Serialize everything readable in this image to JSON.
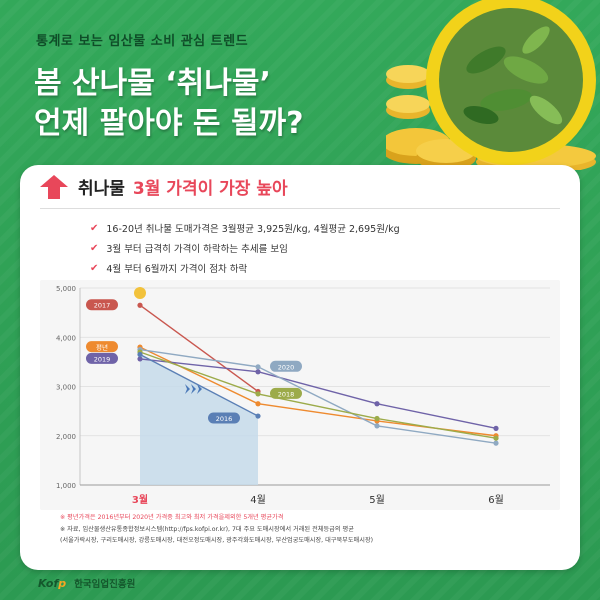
{
  "header": {
    "subtitle": "통계로 보는 임산물 소비 관심 트렌드",
    "title_line1": "봄 산나물 ‘취나물’",
    "title_line2": "언제 팔아야 돈 될까?"
  },
  "card": {
    "heading_main": "취나물",
    "heading_highlight": "3월 가격이 가장 높아",
    "bullets": [
      "16-20년 취나물 도매가격은 3월평균 3,925원/kg, 4월평균 2,695원/kg",
      "3월 부터 급격히 가격이 하락하는 추세를 보임",
      "4월 부터 6월까지 가격이 점차 하락"
    ]
  },
  "notes": {
    "line1": "※ 평년가격은 2016년부터 2020년 가격중 최고와 최저 가격을제외한 5개년 평균가격",
    "line2": "※ 자료, 임산물생산유통종합정보시스템(http://fps.kofpi.or.kr), 7대 주요 도매시장에서 거래된 전체등급의 평균",
    "line3": "(서울가락시장, 구리도매시장, 강릉도매시장, 대전오정도매시장, 광주각화도매시장, 부산엄궁도매시장, 대구북부도매시장)"
  },
  "footer": {
    "logo_a": "Kof",
    "logo_b": "p",
    "org": "한국임업진흥원"
  },
  "colors": {
    "accent": "#e8475a",
    "green": "#2f9d55",
    "dark_green": "#0f4d28"
  },
  "chart_data": {
    "type": "line",
    "categories": [
      "3월",
      "4월",
      "5월",
      "6월"
    ],
    "highlight_category": "3월",
    "ylim": [
      1000,
      5000
    ],
    "yticks": [
      "1,000",
      "2,000",
      "3,000",
      "4,000",
      "5,000"
    ],
    "series": [
      {
        "name": "2017",
        "color": "#c9574f",
        "values": [
          4650,
          2900,
          null,
          null
        ]
      },
      {
        "name": "평년",
        "color": "#ee8a2f",
        "values": [
          3800,
          2650,
          2300,
          2000
        ]
      },
      {
        "name": "2019",
        "color": "#6f63a8",
        "values": [
          3560,
          3300,
          2650,
          2150
        ]
      },
      {
        "name": "2020",
        "color": "#8fa9c2",
        "values": [
          3750,
          3400,
          2200,
          1850
        ]
      },
      {
        "name": "2018",
        "color": "#9cab4a",
        "values": [
          3700,
          2850,
          2350,
          1950
        ]
      },
      {
        "name": "2016",
        "color": "#5a7fb5",
        "values": [
          3650,
          2400,
          null,
          null
        ]
      }
    ]
  }
}
